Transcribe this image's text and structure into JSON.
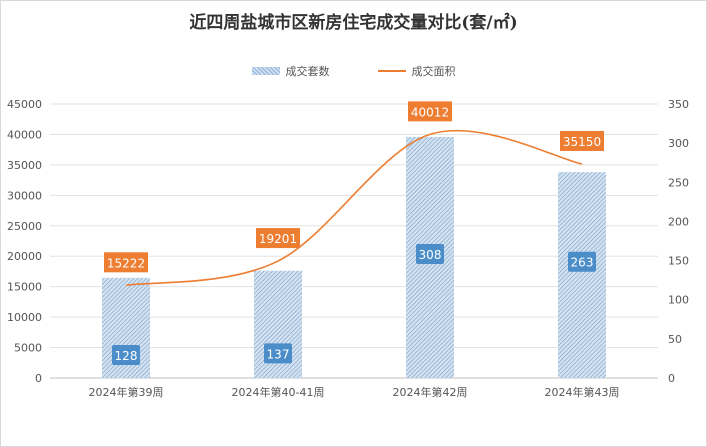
{
  "chart_data": {
    "type": "bar+line",
    "title": "近四周盐城市区新房住宅成交量对比(套/㎡)",
    "categories": [
      "2024年第39周",
      "2024年第40-41周",
      "2024年第42周",
      "2024年第43周"
    ],
    "series": [
      {
        "name": "成交套数",
        "type": "bar",
        "axis": "right",
        "values": [
          128,
          137,
          308,
          263
        ],
        "color": "#8fb3d9",
        "label_color": "#4a8dc8"
      },
      {
        "name": "成交面积",
        "type": "line",
        "axis": "left",
        "values": [
          15222,
          19201,
          40012,
          35150
        ],
        "color": "#ed7d31",
        "label_color": "#ed7d31"
      }
    ],
    "left_axis": {
      "min": 0,
      "max": 45000,
      "step": 5000
    },
    "right_axis": {
      "min": 0,
      "max": 350,
      "step": 50
    },
    "legend_position": "top",
    "grid": true
  }
}
